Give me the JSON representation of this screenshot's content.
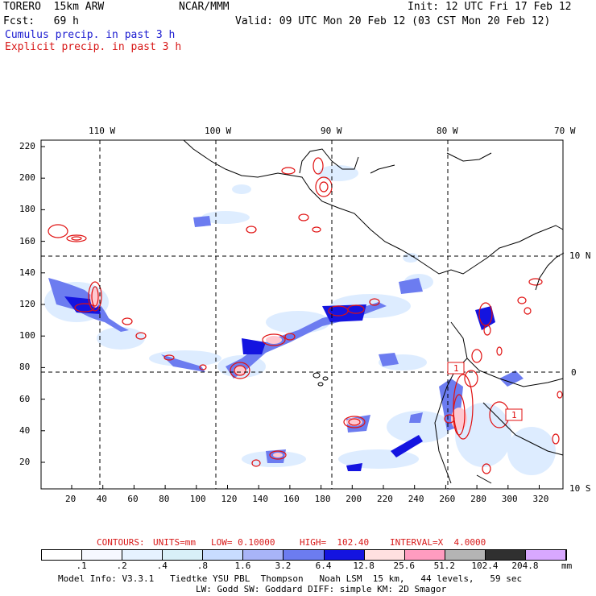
{
  "header": {
    "model": "TORERO  15km ARW",
    "org": "NCAR/MMM",
    "init": "Init: 12 UTC Fri 17 Feb 12",
    "fcst": "Fcst:   69 h",
    "valid": "Valid: 09 UTC Mon 20 Feb 12 (03 CST Mon 20 Feb 12)",
    "cumulus": "Cumulus precip. in past 3 h",
    "explicit": "Explicit precip. in past 3 h"
  },
  "map": {
    "lon_labels": [
      "110 W",
      "100 W",
      "90 W",
      "80 W",
      "70 W"
    ],
    "lat_labels": [
      "10 N",
      "0",
      "10 S"
    ],
    "y_ticks": [
      "220",
      "200",
      "180",
      "160",
      "140",
      "120",
      "100",
      "80",
      "60",
      "40",
      "20"
    ],
    "x_ticks": [
      "20",
      "40",
      "60",
      "80",
      "100",
      "120",
      "140",
      "160",
      "180",
      "200",
      "220",
      "240",
      "260",
      "280",
      "300",
      "320"
    ],
    "box_labels": [
      "1",
      "1"
    ],
    "colors": {
      "land": "#000000",
      "grid": "#000000",
      "cumulus_light": "#d8ecff",
      "cumulus_mid": "#6c7cf0",
      "cumulus_heavy": "#1414e0",
      "explicit": "#e01010",
      "explicit_fill": "#ffc8d0"
    }
  },
  "contours": {
    "label": "CONTOURS:",
    "units": "UNITS=mm",
    "low": "LOW= 0.10000",
    "high": "HIGH=  102.40",
    "interval": "INTERVAL=X  4.0000"
  },
  "colorbar": {
    "colors": [
      "#ffffff",
      "#f6f8ff",
      "#e6f2ff",
      "#d8f0f8",
      "#c8dcff",
      "#a8b4f8",
      "#6c7cf0",
      "#1414e0",
      "#ffe0e0",
      "#ff9cc0",
      "#b4b4b4",
      "#303030",
      "#d8a8ff"
    ],
    "ticks": [
      ".1",
      ".2",
      ".4",
      ".8",
      "1.6",
      "3.2",
      "6.4",
      "12.8",
      "25.6",
      "51.2",
      "102.4",
      "204.8"
    ],
    "unit": "mm"
  },
  "footer": {
    "line1": "Model Info: V3.3.1   Tiedtke YSU PBL  Thompson   Noah LSM  15 km,   44 levels,   59 sec",
    "line2": "LW: Godd SW: Goddard DIFF: simple KM: 2D Smagor"
  }
}
